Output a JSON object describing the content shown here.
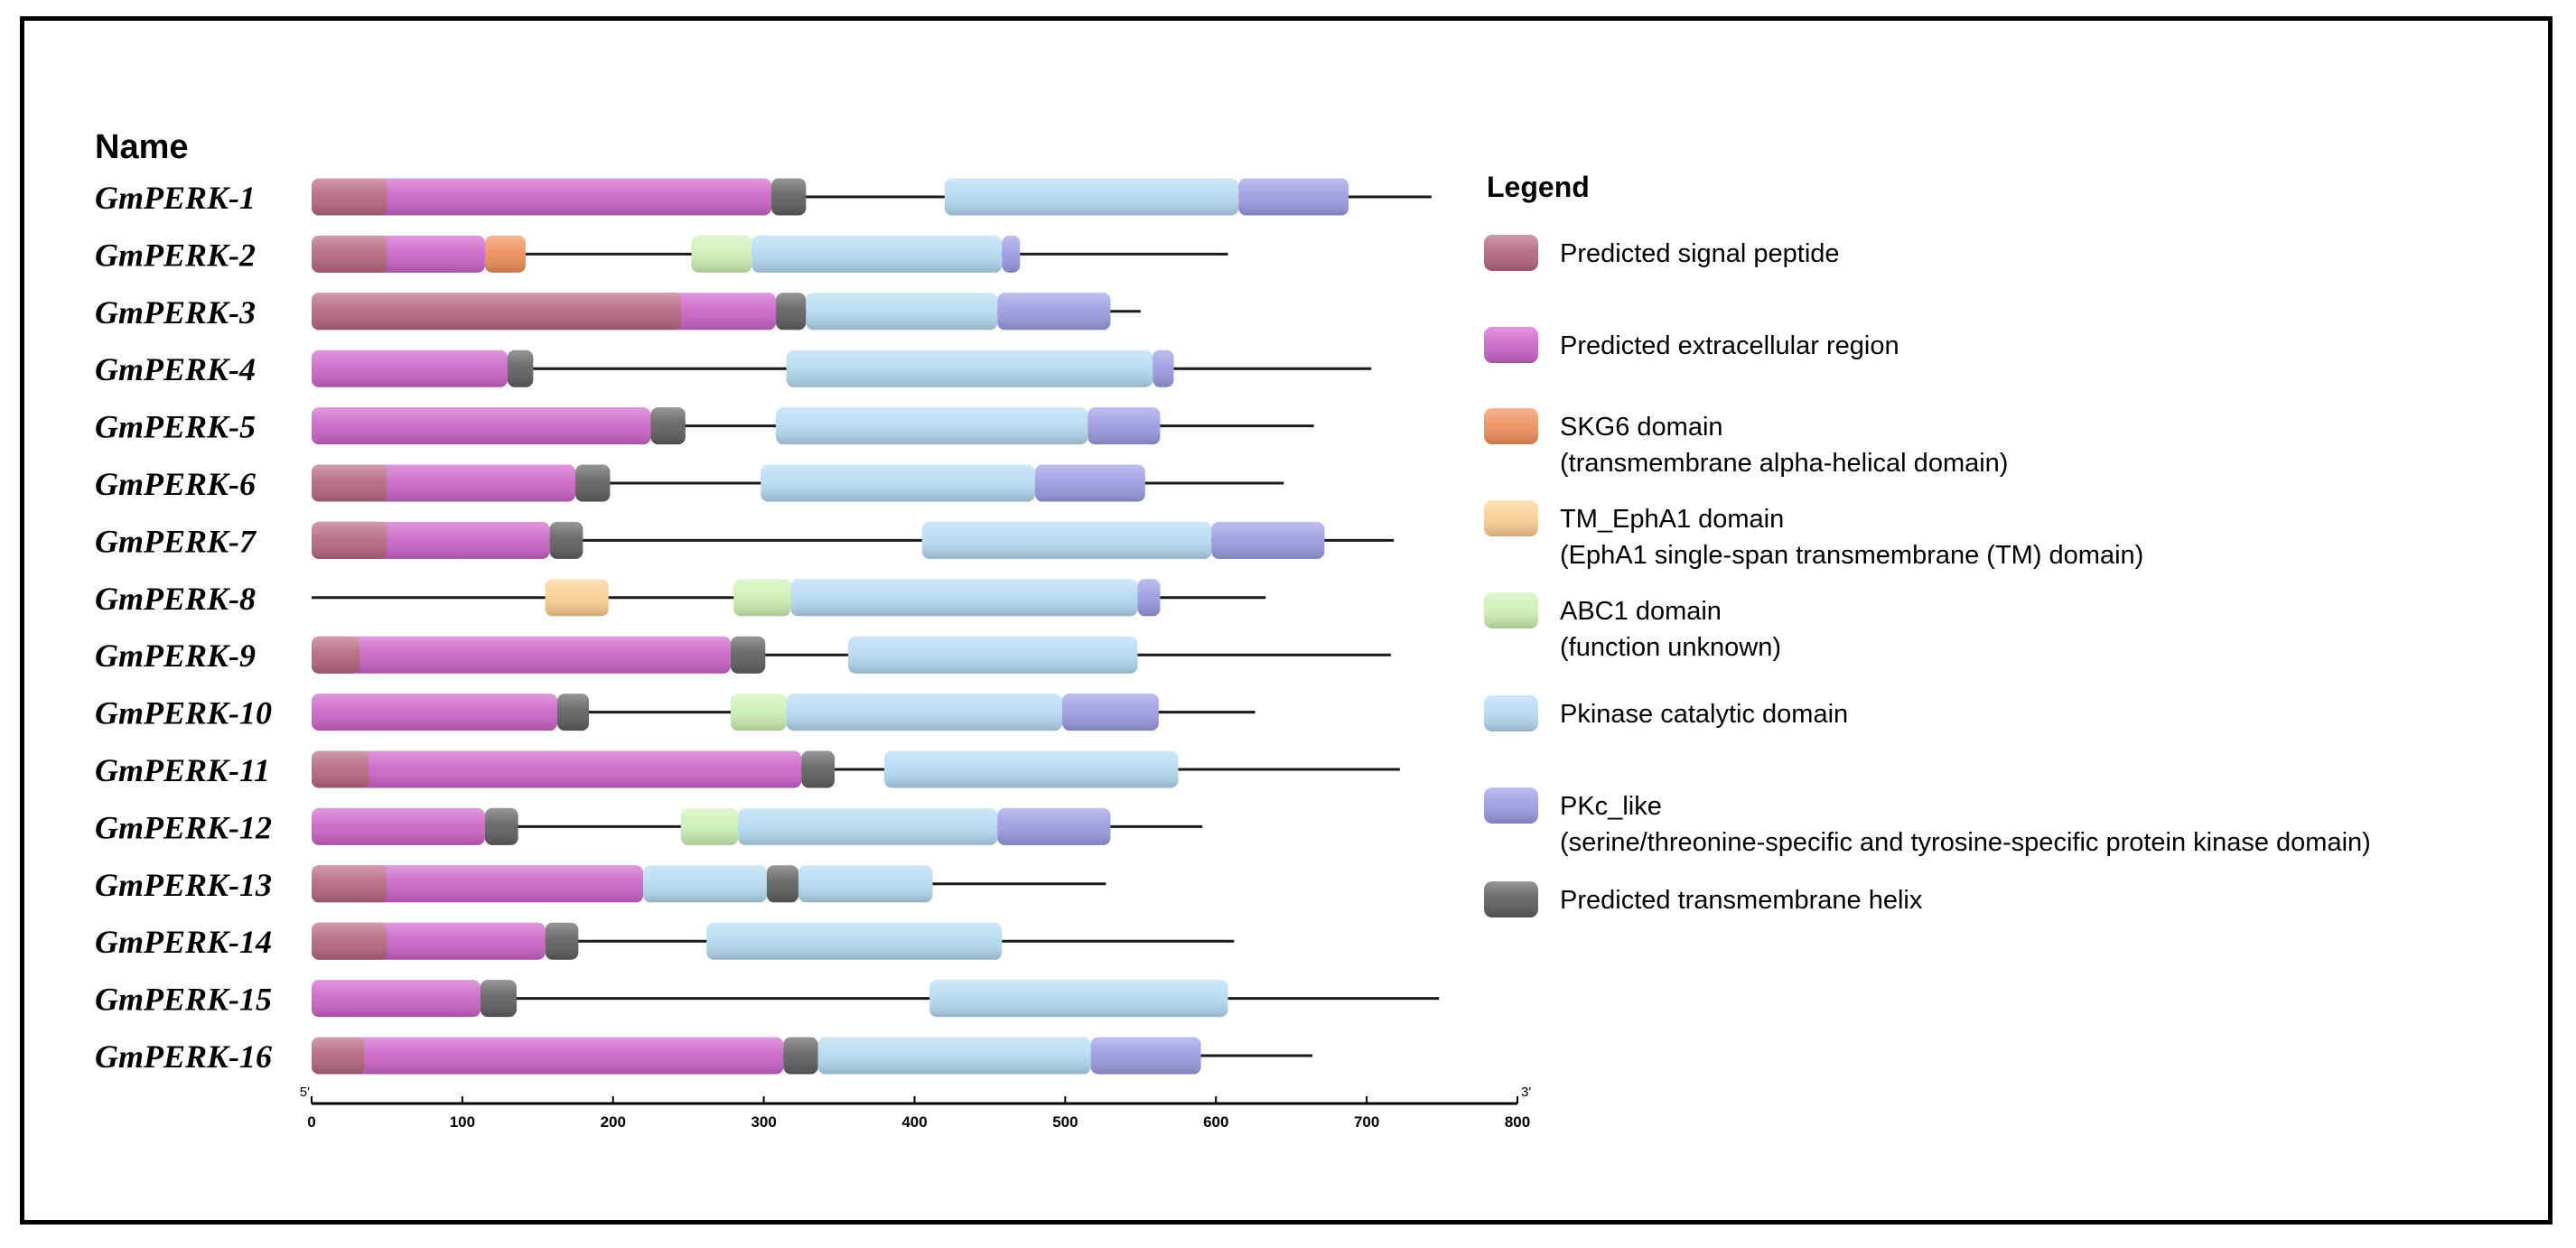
{
  "name_header": "Name",
  "legend_title": "Legend",
  "axis": {
    "min": 0,
    "max": 800,
    "ticks": [
      0,
      100,
      200,
      300,
      400,
      500,
      600,
      700,
      800
    ],
    "start_label": "5'",
    "end_label": "3'"
  },
  "domain_types": {
    "sp": {
      "color": "#b5667f",
      "lines": [
        "Predicted signal peptide"
      ]
    },
    "ecr": {
      "color": "#cc63c8",
      "lines": [
        "Predicted extracellular region"
      ]
    },
    "skg6": {
      "color": "#ee8e5a",
      "lines": [
        "SKG6 domain",
        "(transmembrane alpha-helical domain)"
      ]
    },
    "epha": {
      "color": "#fbcf92",
      "lines": [
        "TM_EphA1 domain",
        "(EphA1 single-span transmembrane (TM) domain)"
      ]
    },
    "abc1": {
      "color": "#cdf0b3",
      "lines": [
        "ABC1 domain",
        "(function unknown)"
      ]
    },
    "pk": {
      "color": "#b5daf3",
      "lines": [
        "Pkinase catalytic domain"
      ]
    },
    "pkc": {
      "color": "#9b9be2",
      "lines": [
        "PKc_like",
        "(serine/threonine-specific and tyrosine-specific protein kinase domain)"
      ]
    },
    "tm": {
      "color": "#5f5f5f",
      "lines": [
        "Predicted transmembrane helix"
      ]
    }
  },
  "legend_order": [
    "sp",
    "ecr",
    "skg6",
    "epha",
    "abc1",
    "pk",
    "pkc",
    "tm"
  ],
  "proteins": [
    {
      "name": "GmPERK-1",
      "length": 743,
      "domains": [
        [
          "ecr",
          0,
          305
        ],
        [
          "sp",
          0,
          50
        ],
        [
          "tm",
          305,
          328
        ],
        [
          "pk",
          420,
          615
        ],
        [
          "pkc",
          615,
          688
        ]
      ]
    },
    {
      "name": "GmPERK-2",
      "length": 608,
      "domains": [
        [
          "ecr",
          0,
          115
        ],
        [
          "sp",
          0,
          50
        ],
        [
          "skg6",
          115,
          142
        ],
        [
          "abc1",
          252,
          292
        ],
        [
          "pk",
          292,
          458
        ],
        [
          "pkc",
          458,
          470
        ]
      ]
    },
    {
      "name": "GmPERK-3",
      "length": 550,
      "domains": [
        [
          "ecr",
          0,
          308
        ],
        [
          "sp",
          0,
          245
        ],
        [
          "tm",
          308,
          328
        ],
        [
          "pk",
          328,
          455
        ],
        [
          "pkc",
          455,
          530
        ]
      ]
    },
    {
      "name": "GmPERK-4",
      "length": 703,
      "domains": [
        [
          "ecr",
          0,
          130
        ],
        [
          "tm",
          130,
          147
        ],
        [
          "pk",
          315,
          558
        ],
        [
          "pkc",
          558,
          572
        ]
      ]
    },
    {
      "name": "GmPERK-5",
      "length": 665,
      "domains": [
        [
          "ecr",
          0,
          225
        ],
        [
          "tm",
          225,
          248
        ],
        [
          "pk",
          308,
          515
        ],
        [
          "pkc",
          515,
          563
        ]
      ]
    },
    {
      "name": "GmPERK-6",
      "length": 645,
      "domains": [
        [
          "ecr",
          0,
          175
        ],
        [
          "sp",
          0,
          50
        ],
        [
          "tm",
          175,
          198
        ],
        [
          "pk",
          298,
          480
        ],
        [
          "pkc",
          480,
          553
        ]
      ]
    },
    {
      "name": "GmPERK-7",
      "length": 718,
      "domains": [
        [
          "ecr",
          0,
          158
        ],
        [
          "sp",
          0,
          50
        ],
        [
          "tm",
          158,
          180
        ],
        [
          "pk",
          405,
          597
        ],
        [
          "pkc",
          597,
          672
        ]
      ]
    },
    {
      "name": "GmPERK-8",
      "length": 633,
      "domains": [
        [
          "epha",
          155,
          197
        ],
        [
          "abc1",
          280,
          318
        ],
        [
          "pk",
          318,
          548
        ],
        [
          "pkc",
          548,
          563
        ]
      ]
    },
    {
      "name": "GmPERK-9",
      "length": 716,
      "domains": [
        [
          "ecr",
          0,
          278
        ],
        [
          "sp",
          0,
          32
        ],
        [
          "tm",
          278,
          301
        ],
        [
          "pk",
          356,
          548
        ]
      ]
    },
    {
      "name": "GmPERK-10",
      "length": 626,
      "domains": [
        [
          "ecr",
          0,
          163
        ],
        [
          "tm",
          163,
          184
        ],
        [
          "abc1",
          278,
          315
        ],
        [
          "pk",
          315,
          498
        ],
        [
          "pkc",
          498,
          562
        ]
      ]
    },
    {
      "name": "GmPERK-11",
      "length": 722,
      "domains": [
        [
          "ecr",
          0,
          325
        ],
        [
          "sp",
          0,
          38
        ],
        [
          "tm",
          325,
          347
        ],
        [
          "pk",
          380,
          575
        ]
      ]
    },
    {
      "name": "GmPERK-12",
      "length": 591,
      "domains": [
        [
          "ecr",
          0,
          115
        ],
        [
          "tm",
          115,
          137
        ],
        [
          "abc1",
          245,
          283
        ],
        [
          "pk",
          283,
          455
        ],
        [
          "pkc",
          455,
          530
        ]
      ]
    },
    {
      "name": "GmPERK-13",
      "length": 527,
      "domains": [
        [
          "ecr",
          0,
          220
        ],
        [
          "sp",
          0,
          50
        ],
        [
          "pk",
          220,
          302
        ],
        [
          "tm",
          302,
          323
        ],
        [
          "pk",
          323,
          412
        ]
      ]
    },
    {
      "name": "GmPERK-14",
      "length": 612,
      "domains": [
        [
          "ecr",
          0,
          155
        ],
        [
          "sp",
          0,
          50
        ],
        [
          "tm",
          155,
          177
        ],
        [
          "pk",
          262,
          458
        ]
      ]
    },
    {
      "name": "GmPERK-15",
      "length": 748,
      "domains": [
        [
          "ecr",
          0,
          112
        ],
        [
          "tm",
          112,
          136
        ],
        [
          "pk",
          410,
          608
        ]
      ]
    },
    {
      "name": "GmPERK-16",
      "length": 664,
      "domains": [
        [
          "ecr",
          0,
          313
        ],
        [
          "sp",
          0,
          35
        ],
        [
          "tm",
          313,
          336
        ],
        [
          "pk",
          336,
          517
        ],
        [
          "pkc",
          517,
          590
        ]
      ]
    }
  ]
}
